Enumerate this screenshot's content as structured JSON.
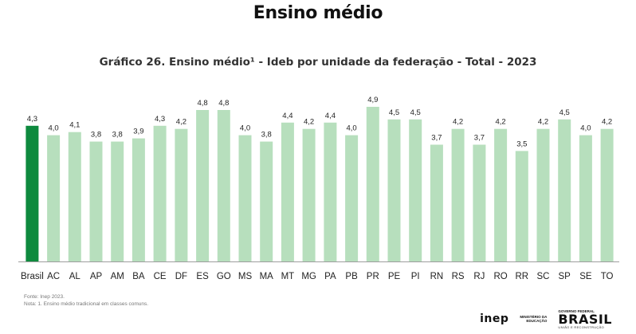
{
  "header": {
    "title": "Ensino médio"
  },
  "chart_data": {
    "type": "bar",
    "title": "Gráfico 26. Ensino médio¹ - Ideb por unidade da federação - Total - 2023",
    "categories": [
      "Brasil",
      "AC",
      "AL",
      "AP",
      "AM",
      "BA",
      "CE",
      "DF",
      "ES",
      "GO",
      "MS",
      "MA",
      "MT",
      "MG",
      "PA",
      "PB",
      "PR",
      "PE",
      "PI",
      "RN",
      "RS",
      "RJ",
      "RO",
      "RR",
      "SC",
      "SP",
      "SE",
      "TO"
    ],
    "values": [
      4.3,
      4.0,
      4.1,
      3.8,
      3.8,
      3.9,
      4.3,
      4.2,
      4.8,
      4.8,
      4.0,
      3.8,
      4.4,
      4.2,
      4.4,
      4.0,
      4.9,
      4.5,
      4.5,
      3.7,
      4.2,
      3.7,
      4.2,
      3.5,
      4.2,
      4.5,
      4.0,
      4.2
    ],
    "value_labels": [
      "4,3",
      "4,0",
      "4,1",
      "3,8",
      "3,8",
      "3,9",
      "4,3",
      "4,2",
      "4,8",
      "4,8",
      "4,0",
      "3,8",
      "4,4",
      "4,2",
      "4,4",
      "4,0",
      "4,9",
      "4,5",
      "4,5",
      "3,7",
      "4,2",
      "3,7",
      "4,2",
      "3,5",
      "4,2",
      "4,5",
      "4,0",
      "4,2"
    ],
    "ylim": [
      0,
      4.9
    ],
    "grid": false,
    "highlight_category": "Brasil",
    "colors": {
      "highlight": "#0e8a3e",
      "bar": "#b7dfbd",
      "baseline": "#9e9e9e"
    }
  },
  "footer": {
    "source": "Fonte: Inep 2023.",
    "note": "Nota: 1. Ensino médio tradicional em classes comuns."
  },
  "logos": {
    "inep": "inep",
    "mec_line1": "MINISTÉRIO DA",
    "mec_line2": "EDUCAÇÃO",
    "gov": "GOVERNO FEDERAL",
    "brasil": "BRASIL",
    "brasil_sub": "UNIÃO E RECONSTRUÇÃO"
  }
}
